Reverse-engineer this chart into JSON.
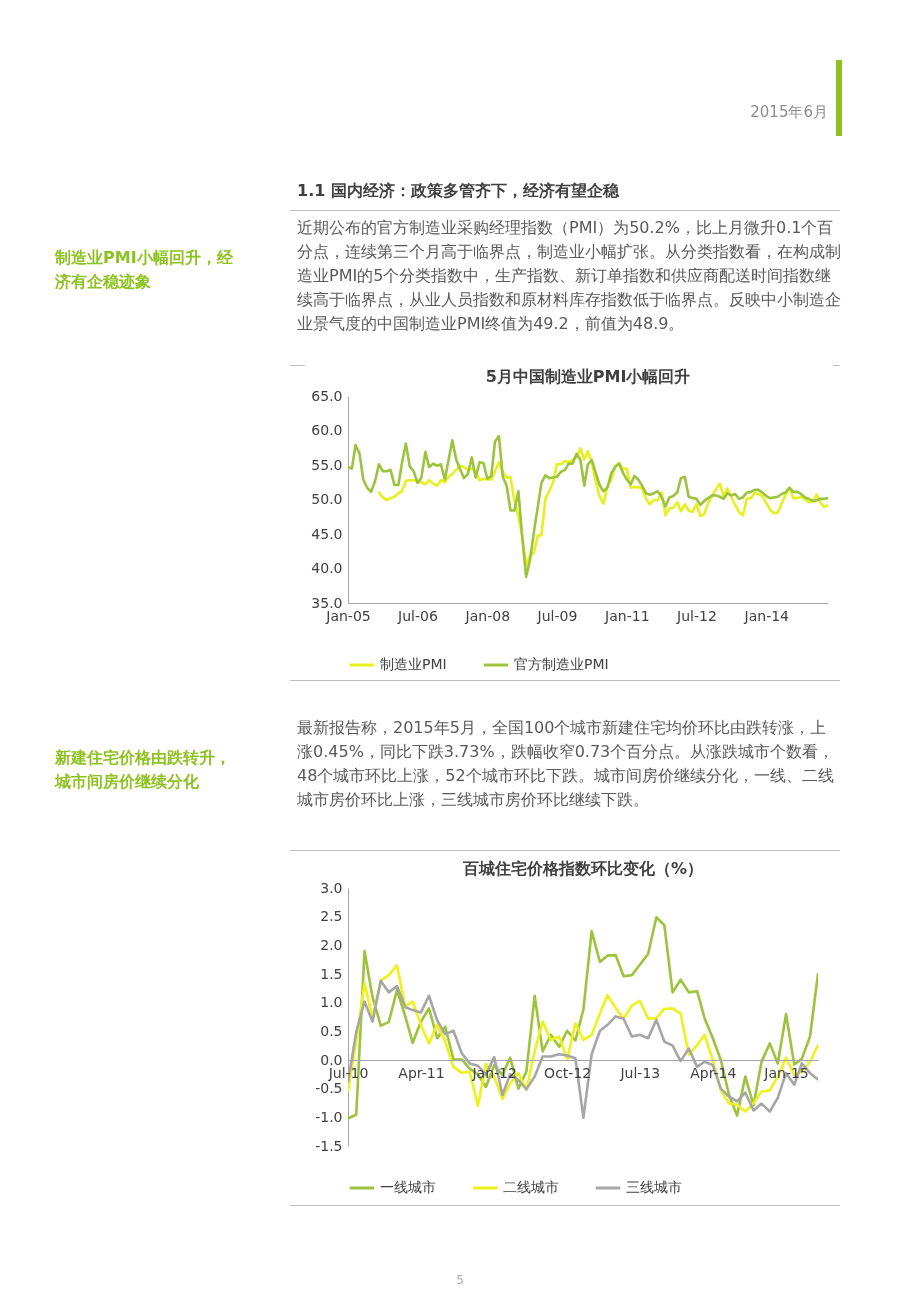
{
  "chart_data": [
    {
      "type": "line",
      "title": "5月中国制造业PMI小幅回升",
      "annotations": [
        "2015年6月",
        "1.1  国内经济：政策多管齐下，经济有望企稳",
        "制造业PMI小幅回升，经济有企稳迹象",
        "近期公布的官方制造业采购经理指数（PMI）为50.2%，比上月微升0.1个百分点，连续第三个月高于临界点，制造业小幅扩张。从分类指数看，在构成制造业PMI的5个分类指数中，生产指数、新订单指数和供应商配送时间指数继续高于临界点，从业人员指数和原材料库存指数低于临界点。反映中小制造企业景气度的中国制造业PMI终值为49.2，前值为48.9。",
        "5"
      ],
      "x": [
        "2005-01",
        "2005-02",
        "2005-03",
        "2005-04",
        "2005-05",
        "2005-06",
        "2005-07",
        "2005-08",
        "2005-09",
        "2005-10",
        "2005-11",
        "2005-12",
        "2006-01",
        "2006-02",
        "2006-03",
        "2006-04",
        "2006-05",
        "2006-06",
        "2006-07",
        "2006-08",
        "2006-09",
        "2006-10",
        "2006-11",
        "2006-12",
        "2007-01",
        "2007-02",
        "2007-03",
        "2007-04",
        "2007-05",
        "2007-06",
        "2007-07",
        "2007-08",
        "2007-09",
        "2007-10",
        "2007-11",
        "2007-12",
        "2008-01",
        "2008-02",
        "2008-03",
        "2008-04",
        "2008-05",
        "2008-06",
        "2008-07",
        "2008-08",
        "2008-09",
        "2008-10",
        "2008-11",
        "2008-12",
        "2009-01",
        "2009-02",
        "2009-03",
        "2009-04",
        "2009-05",
        "2009-06",
        "2009-07",
        "2009-08",
        "2009-09",
        "2009-10",
        "2009-11",
        "2009-12",
        "2010-01",
        "2010-02",
        "2010-03",
        "2010-04",
        "2010-05",
        "2010-06",
        "2010-07",
        "2010-08",
        "2010-09",
        "2010-10",
        "2010-11",
        "2010-12",
        "2011-01",
        "2011-02",
        "2011-03",
        "2011-04",
        "2011-05",
        "2011-06",
        "2011-07",
        "2011-08",
        "2011-09",
        "2011-10",
        "2011-11",
        "2011-12",
        "2012-01",
        "2012-02",
        "2012-03",
        "2012-04",
        "2012-05",
        "2012-06",
        "2012-07",
        "2012-08",
        "2012-09",
        "2012-10",
        "2012-11",
        "2012-12",
        "2013-01",
        "2013-02",
        "2013-03",
        "2013-04",
        "2013-05",
        "2013-06",
        "2013-07",
        "2013-08",
        "2013-09",
        "2013-10",
        "2013-11",
        "2013-12",
        "2014-01",
        "2014-02",
        "2014-03",
        "2014-04",
        "2014-05",
        "2014-06",
        "2014-07",
        "2014-08",
        "2014-09",
        "2014-10",
        "2014-11",
        "2014-12",
        "2015-01",
        "2015-02",
        "2015-03",
        "2015-04",
        "2015-05"
      ],
      "series": [
        {
          "name": "制造业PMI",
          "color": "#e8f01c",
          "values": [
            null,
            null,
            null,
            null,
            null,
            null,
            null,
            null,
            51.0,
            50.3,
            49.9,
            50.2,
            50.4,
            50.9,
            51.2,
            52.7,
            52.8,
            52.8,
            52.7,
            52.5,
            52.2,
            52.8,
            52.3,
            52.0,
            52.8,
            52.5,
            53.3,
            53.7,
            54.3,
            54.9,
            54.7,
            54.3,
            54.5,
            54.0,
            52.8,
            53.0,
            52.9,
            52.9,
            54.1,
            55.4,
            54.0,
            53.2,
            53.2,
            49.8,
            47.6,
            44.6,
            40.4,
            41.9,
            42.3,
            44.8,
            44.8,
            50.1,
            51.2,
            52.5,
            55.1,
            55.1,
            55.6,
            55.4,
            55.7,
            56.1,
            57.4,
            55.8,
            57.0,
            55.4,
            52.7,
            50.4,
            49.4,
            51.9,
            52.9,
            54.8,
            55.3,
            54.4,
            54.5,
            51.7,
            51.8,
            51.8,
            51.6,
            50.1,
            49.3,
            49.9,
            49.9,
            51.0,
            47.7,
            48.7,
            48.8,
            49.6,
            48.3,
            49.3,
            48.4,
            48.2,
            49.3,
            47.6,
            47.9,
            49.5,
            50.5,
            51.5,
            52.3,
            50.4,
            51.6,
            50.4,
            49.2,
            48.2,
            47.7,
            50.1,
            50.2,
            50.9,
            50.8,
            50.5,
            49.5,
            48.5,
            48.0,
            48.1,
            49.4,
            50.7,
            51.7,
            50.2,
            50.2,
            50.4,
            50.0,
            49.6,
            49.7,
            50.7,
            49.6,
            48.9,
            49.2
          ]
        },
        {
          "name": "官方制造业PMI",
          "color": "#9bc43c",
          "values": [
            54.7,
            54.5,
            57.9,
            56.7,
            52.9,
            51.7,
            51.1,
            52.6,
            55.1,
            54.1,
            54.1,
            54.3,
            52.1,
            52.1,
            55.3,
            58.1,
            54.8,
            54.1,
            52.4,
            53.2,
            56.9,
            54.7,
            55.2,
            54.9,
            55.1,
            52.9,
            55.6,
            58.6,
            55.8,
            54.4,
            53.1,
            53.7,
            56.1,
            53.2,
            55.4,
            55.3,
            53.0,
            53.4,
            58.4,
            59.2,
            53.3,
            52.0,
            48.4,
            48.4,
            51.2,
            44.6,
            38.8,
            41.2,
            45.3,
            49.0,
            52.4,
            53.5,
            53.1,
            53.2,
            53.3,
            54.0,
            54.3,
            55.2,
            55.2,
            56.6,
            55.8,
            52.0,
            55.1,
            55.7,
            53.9,
            52.1,
            51.2,
            51.7,
            53.8,
            54.7,
            55.2,
            53.9,
            52.9,
            52.2,
            53.4,
            52.9,
            52.0,
            50.9,
            50.7,
            50.9,
            51.2,
            50.4,
            49.0,
            50.3,
            50.5,
            51.0,
            53.1,
            53.3,
            50.4,
            50.2,
            50.1,
            49.2,
            49.8,
            50.2,
            50.6,
            50.6,
            50.4,
            50.1,
            50.9,
            50.6,
            50.8,
            50.1,
            50.3,
            51.0,
            51.1,
            51.4,
            51.4,
            51.0,
            50.5,
            50.2,
            50.3,
            50.4,
            50.8,
            51.0,
            51.7,
            51.1,
            51.1,
            50.8,
            50.3,
            50.1,
            49.8,
            49.9,
            50.1,
            50.1,
            50.2
          ]
        }
      ],
      "xlim": [
        "2005-01",
        "2015-05"
      ],
      "xticks": [
        {
          "value": "2005-01",
          "label": "Jan-05"
        },
        {
          "value": "2006-07",
          "label": "Jul-06"
        },
        {
          "value": "2008-01",
          "label": "Jan-08"
        },
        {
          "value": "2009-07",
          "label": "Jul-09"
        },
        {
          "value": "2011-01",
          "label": "Jan-11"
        },
        {
          "value": "2012-07",
          "label": "Jul-12"
        },
        {
          "value": "2014-01",
          "label": "Jan-14"
        }
      ],
      "ylim": [
        35,
        65
      ],
      "yticks": [
        {
          "value": 35,
          "label": "35.0"
        },
        {
          "value": 40,
          "label": "40.0"
        },
        {
          "value": 45,
          "label": "45.0"
        },
        {
          "value": 50,
          "label": "50.0"
        },
        {
          "value": 55,
          "label": "55.0"
        },
        {
          "value": 60,
          "label": "60.0"
        },
        {
          "value": 65,
          "label": "65.0"
        }
      ],
      "legend": "bottom"
    },
    {
      "type": "line",
      "title": "百城住宅价格指数环比变化（%）",
      "annotations": [
        "新建住宅价格由跌转升，城市间房价继续分化",
        "最新报告称，2015年5月，全国100个城市新建住宅均价环比由跌转涨，上涨0.45%，同比下跌3.73%，跌幅收窄0.73个百分点。从涨跌城市个数看，48个城市环比上涨，52个城市环比下跌。城市间房价继续分化，一线、二线城市房价环比上涨，三线城市房价环比继续下跌。"
      ],
      "x": [
        "2010-07",
        "2010-08",
        "2010-09",
        "2010-10",
        "2010-11",
        "2010-12",
        "2011-01",
        "2011-02",
        "2011-03",
        "2011-04",
        "2011-05",
        "2011-06",
        "2011-07",
        "2011-08",
        "2011-09",
        "2011-10",
        "2011-11",
        "2011-12",
        "2012-01",
        "2012-02",
        "2012-03",
        "2012-04",
        "2012-05",
        "2012-06",
        "2012-07",
        "2012-08",
        "2012-09",
        "2012-10",
        "2012-11",
        "2012-12",
        "2013-01",
        "2013-02",
        "2013-03",
        "2013-04",
        "2013-05",
        "2013-06",
        "2013-07",
        "2013-08",
        "2013-09",
        "2013-10",
        "2013-11",
        "2013-12",
        "2014-01",
        "2014-02",
        "2014-03",
        "2014-04",
        "2014-05",
        "2014-06",
        "2014-07",
        "2014-08",
        "2014-09",
        "2014-10",
        "2014-11",
        "2014-12",
        "2015-01",
        "2015-02",
        "2015-03",
        "2015-04",
        "2015-05"
      ],
      "series": [
        {
          "name": "一线城市",
          "color": "#9bc43c",
          "values": [
            -1.02,
            -0.95,
            1.9,
            1.1,
            0.6,
            0.66,
            1.22,
            0.76,
            0.3,
            0.67,
            0.9,
            0.38,
            0.58,
            0.01,
            0.01,
            -0.15,
            -0.25,
            -0.47,
            -0.09,
            -0.26,
            0.04,
            -0.5,
            -0.2,
            1.12,
            0.15,
            0.44,
            0.23,
            0.51,
            0.34,
            0.88,
            2.25,
            1.71,
            1.82,
            1.83,
            1.46,
            1.48,
            1.66,
            1.85,
            2.49,
            2.35,
            1.18,
            1.4,
            1.18,
            1.2,
            0.73,
            0.38,
            0.0,
            -0.61,
            -0.97,
            -0.29,
            -0.79,
            -0.03,
            0.29,
            -0.06,
            0.8,
            -0.08,
            0.02,
            0.41,
            1.5
          ]
        },
        {
          "name": "二线城市",
          "color": "#eef21a",
          "values": [
            -0.54,
            0.32,
            1.34,
            0.73,
            1.38,
            1.48,
            1.65,
            0.93,
            1.02,
            0.61,
            0.29,
            0.62,
            0.32,
            -0.12,
            -0.22,
            -0.21,
            -0.8,
            -0.07,
            -0.29,
            -0.68,
            -0.41,
            -0.23,
            -0.52,
            0.15,
            0.67,
            0.35,
            0.41,
            0.01,
            0.64,
            0.35,
            0.44,
            0.81,
            1.13,
            0.91,
            0.72,
            0.95,
            1.03,
            0.72,
            0.73,
            0.89,
            0.9,
            0.81,
            0.09,
            0.26,
            0.44,
            0.0,
            -0.53,
            -0.76,
            -0.78,
            -0.9,
            -0.75,
            -0.55,
            -0.53,
            -0.29,
            0.04,
            -0.26,
            -0.2,
            -0.03,
            0.26
          ]
        },
        {
          "name": "三线城市",
          "color": "#a6a6a6",
          "values": [
            -0.38,
            0.49,
            1.02,
            0.67,
            1.38,
            1.18,
            1.29,
            0.92,
            0.87,
            0.83,
            1.12,
            0.69,
            0.45,
            0.51,
            0.12,
            -0.06,
            -0.1,
            -0.26,
            0.05,
            -0.61,
            -0.25,
            -0.35,
            -0.51,
            -0.29,
            0.06,
            0.06,
            0.1,
            0.08,
            0.03,
            -1.01,
            0.1,
            0.51,
            0.61,
            0.76,
            0.72,
            0.41,
            0.44,
            0.38,
            0.7,
            0.32,
            0.25,
            -0.02,
            0.2,
            -0.12,
            -0.03,
            -0.09,
            -0.5,
            -0.64,
            -0.72,
            -0.57,
            -0.88,
            -0.76,
            -0.9,
            -0.66,
            -0.23,
            -0.43,
            -0.06,
            -0.23,
            -0.34
          ]
        }
      ],
      "xlim": [
        "2010-07",
        "2015-05"
      ],
      "xticks": [
        {
          "value": "2010-07",
          "label": "Jul-10"
        },
        {
          "value": "2011-04",
          "label": "Apr-11"
        },
        {
          "value": "2012-01",
          "label": "Jan-12"
        },
        {
          "value": "2012-10",
          "label": "Oct-12"
        },
        {
          "value": "2013-07",
          "label": "Jul-13"
        },
        {
          "value": "2014-04",
          "label": "Apr-14"
        },
        {
          "value": "2015-01",
          "label": "Jan-15"
        }
      ],
      "ylim": [
        -1.5,
        3.0
      ],
      "yticks": [
        -1.5,
        {
          "value": -1,
          "label": "-1.0"
        },
        -0.5,
        {
          "value": 0,
          "label": "0.0"
        },
        0.5,
        {
          "value": 1,
          "label": "1.0"
        },
        1.5,
        {
          "value": 2,
          "label": "2.0"
        },
        2.5,
        {
          "value": 3,
          "label": "3.0"
        }
      ],
      "legend": "bottom"
    }
  ]
}
